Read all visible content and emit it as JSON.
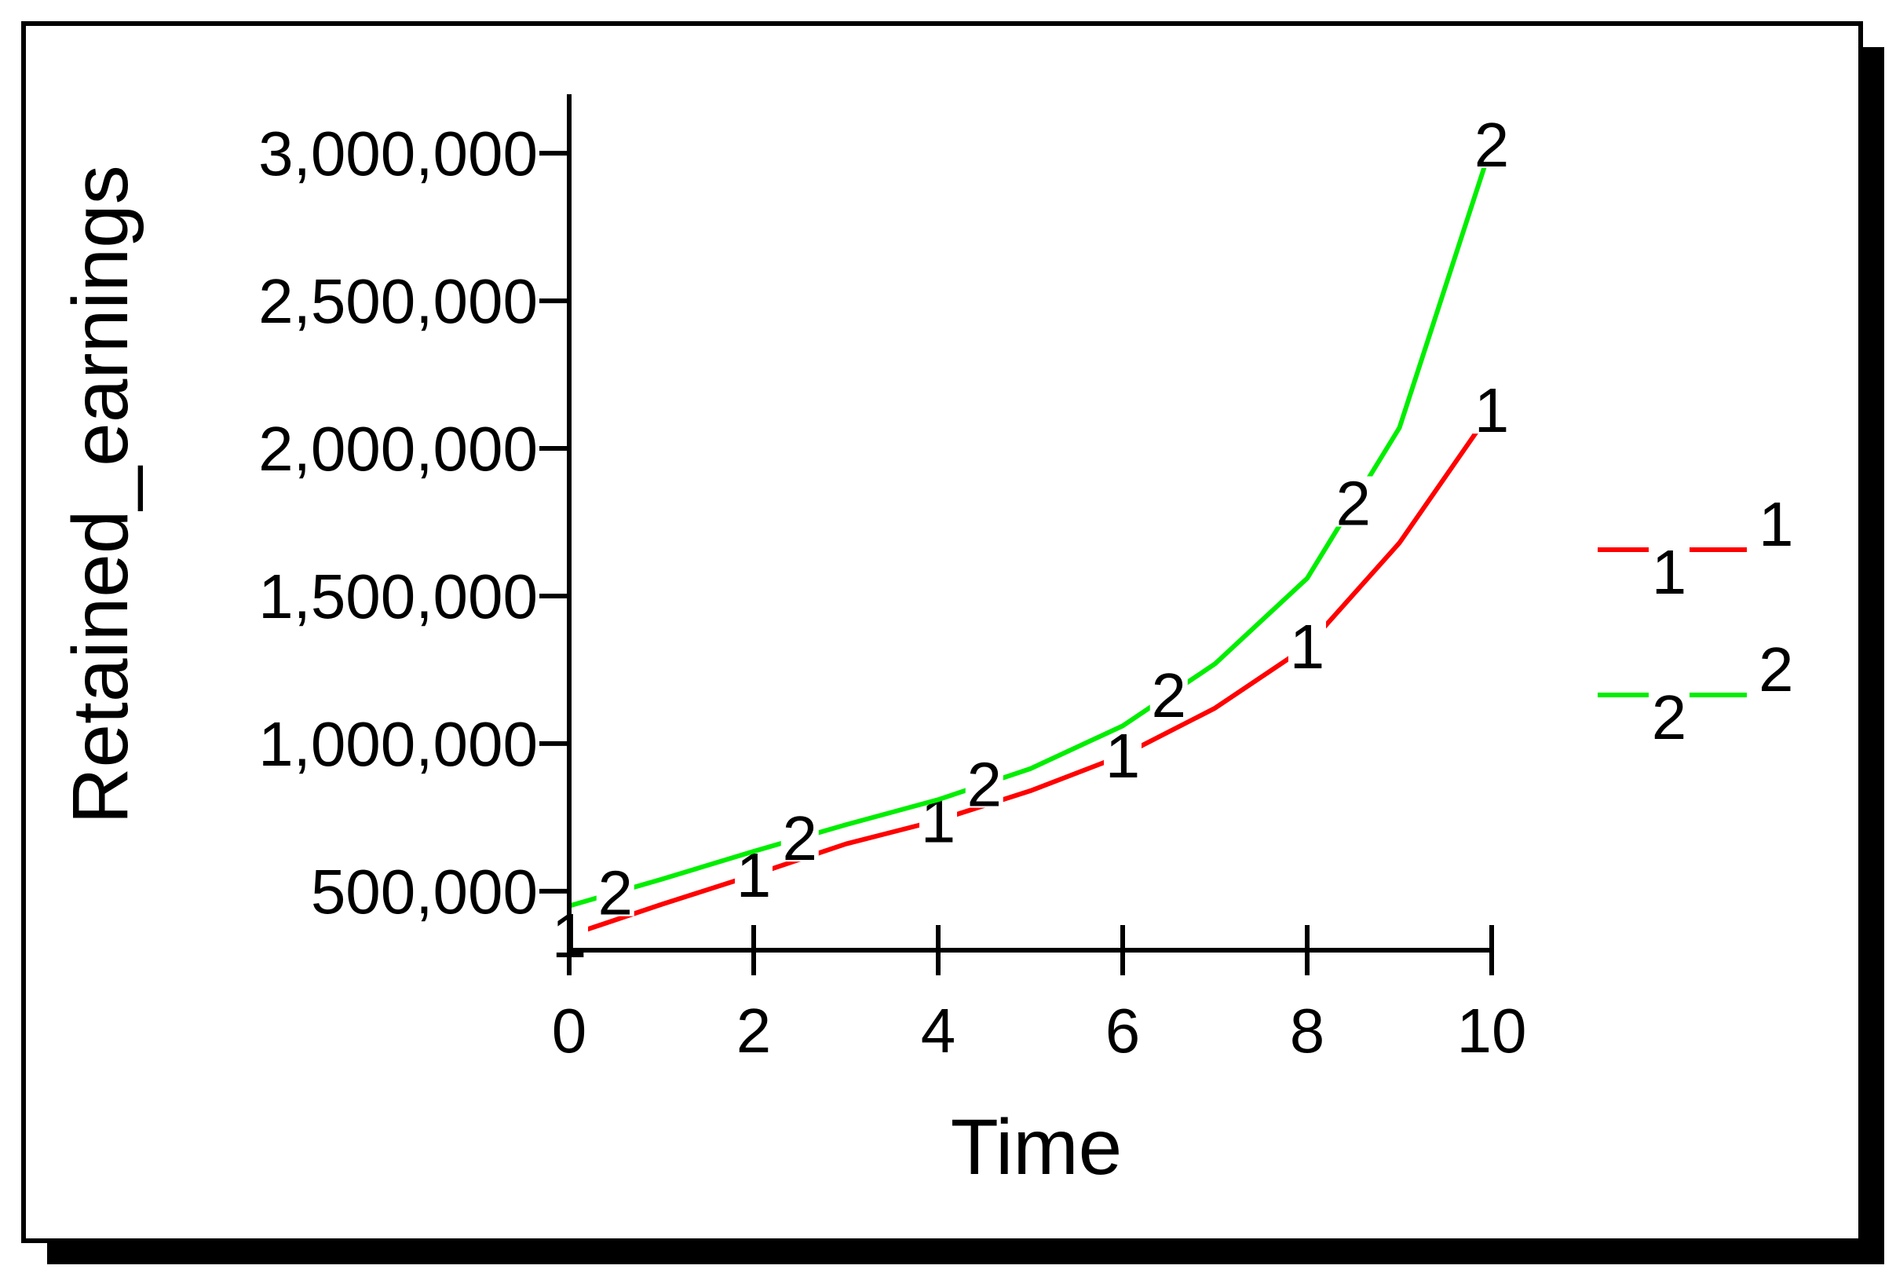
{
  "chart_data": {
    "type": "line",
    "xlabel": "Time",
    "ylabel": "Retained_earnings",
    "xlim": [
      0,
      10
    ],
    "ylim": [
      300000,
      3200000
    ],
    "xticks": [
      0,
      2,
      4,
      6,
      8,
      10
    ],
    "xtick_labels": [
      "0",
      "2",
      "4",
      "6",
      "8",
      "10"
    ],
    "yticks": [
      500000,
      1000000,
      1500000,
      2000000,
      2500000,
      3000000
    ],
    "ytick_labels": [
      "500,000",
      "1,000,000",
      "1,500,000",
      "2,000,000",
      "2,500,000",
      "3,000,000"
    ],
    "grid": false,
    "legend_position": "right",
    "x": [
      0,
      1,
      2,
      3,
      4,
      5,
      6,
      7,
      8,
      9,
      10
    ],
    "series": [
      {
        "name": "1",
        "marker": "1",
        "color": "#ff0000",
        "values": [
          350000,
          455000,
          555000,
          660000,
          740000,
          840000,
          960000,
          1120000,
          1330000,
          1680000,
          2130000
        ],
        "marker_x": [
          0,
          2,
          4,
          6,
          8,
          10
        ]
      },
      {
        "name": "2",
        "marker": "2",
        "color": "#00ee00",
        "values": [
          450000,
          540000,
          635000,
          725000,
          810000,
          915000,
          1060000,
          1270000,
          1560000,
          2070000,
          3030000
        ],
        "marker_x": [
          0.5,
          2.5,
          4.5,
          6.5,
          8.5,
          10
        ]
      }
    ]
  }
}
